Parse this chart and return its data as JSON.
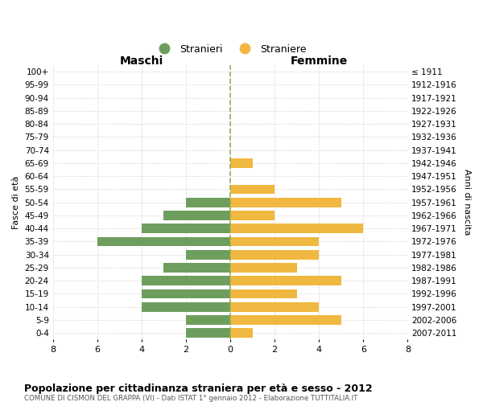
{
  "age_groups": [
    "100+",
    "95-99",
    "90-94",
    "85-89",
    "80-84",
    "75-79",
    "70-74",
    "65-69",
    "60-64",
    "55-59",
    "50-54",
    "45-49",
    "40-44",
    "35-39",
    "30-34",
    "25-29",
    "20-24",
    "15-19",
    "10-14",
    "5-9",
    "0-4"
  ],
  "birth_years": [
    "≤ 1911",
    "1912-1916",
    "1917-1921",
    "1922-1926",
    "1927-1931",
    "1932-1936",
    "1937-1941",
    "1942-1946",
    "1947-1951",
    "1952-1956",
    "1957-1961",
    "1962-1966",
    "1967-1971",
    "1972-1976",
    "1977-1981",
    "1982-1986",
    "1987-1991",
    "1992-1996",
    "1997-2001",
    "2002-2006",
    "2007-2011"
  ],
  "males": [
    0,
    0,
    0,
    0,
    0,
    0,
    0,
    0,
    0,
    0,
    2,
    3,
    4,
    6,
    2,
    3,
    4,
    4,
    4,
    2,
    2
  ],
  "females": [
    0,
    0,
    0,
    0,
    0,
    0,
    0,
    1,
    0,
    2,
    5,
    2,
    6,
    4,
    4,
    3,
    5,
    3,
    4,
    5,
    1
  ],
  "male_color": "#6e9e5e",
  "female_color": "#f0b840",
  "background_color": "#ffffff",
  "grid_color": "#cccccc",
  "center_line_color": "#9aaa50",
  "title": "Popolazione per cittadinanza straniera per età e sesso - 2012",
  "subtitle": "COMUNE DI CISMON DEL GRAPPA (VI) - Dati ISTAT 1° gennaio 2012 - Elaborazione TUTTITALIA.IT",
  "xlabel_left": "Maschi",
  "xlabel_right": "Femmine",
  "ylabel_left": "Fasce di età",
  "ylabel_right": "Anni di nascita",
  "legend_male": "Stranieri",
  "legend_female": "Straniere",
  "xlim": 8
}
